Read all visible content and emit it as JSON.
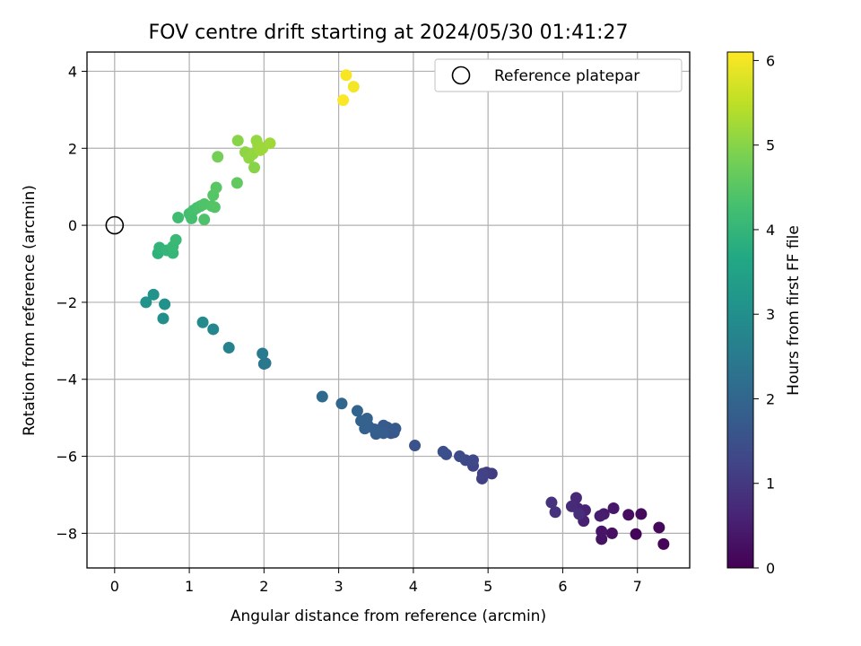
{
  "chart_data": {
    "type": "scatter",
    "title": "FOV centre drift starting at 2024/05/30 01:41:27",
    "xlabel": "Angular distance from reference (arcmin)",
    "ylabel": "Rotation from reference (arcmin)",
    "xlim": [
      -0.37,
      7.7
    ],
    "ylim": [
      -8.9,
      4.5
    ],
    "xticks": [
      0,
      1,
      2,
      3,
      4,
      5,
      6,
      7
    ],
    "yticks": [
      -8,
      -6,
      -4,
      -2,
      0,
      2,
      4
    ],
    "grid": true,
    "legend": {
      "position": "top-right",
      "entries": [
        "Reference platepar"
      ]
    },
    "reference_point": {
      "x": 0,
      "y": 0
    },
    "colorbar": {
      "label": "Hours from first FF file",
      "range": [
        0,
        6.1
      ],
      "ticks": [
        0,
        1,
        2,
        3,
        4,
        5,
        6
      ],
      "colormap": "viridis"
    },
    "points": [
      {
        "x": 6.98,
        "y": -8.02,
        "c": 0.05
      },
      {
        "x": 7.35,
        "y": -8.28,
        "c": 0.08
      },
      {
        "x": 7.29,
        "y": -7.85,
        "c": 0.12
      },
      {
        "x": 7.05,
        "y": -7.5,
        "c": 0.15
      },
      {
        "x": 6.88,
        "y": -7.52,
        "c": 0.2
      },
      {
        "x": 6.66,
        "y": -8.0,
        "c": 0.25
      },
      {
        "x": 6.52,
        "y": -8.15,
        "c": 0.3
      },
      {
        "x": 6.52,
        "y": -7.95,
        "c": 0.35
      },
      {
        "x": 6.68,
        "y": -7.35,
        "c": 0.4
      },
      {
        "x": 6.55,
        "y": -7.5,
        "c": 0.45
      },
      {
        "x": 6.5,
        "y": -7.55,
        "c": 0.5
      },
      {
        "x": 6.28,
        "y": -7.68,
        "c": 0.55
      },
      {
        "x": 6.3,
        "y": -7.4,
        "c": 0.6
      },
      {
        "x": 6.2,
        "y": -7.35,
        "c": 0.65
      },
      {
        "x": 6.18,
        "y": -7.08,
        "c": 0.7
      },
      {
        "x": 6.12,
        "y": -7.3,
        "c": 0.75
      },
      {
        "x": 6.22,
        "y": -7.5,
        "c": 0.8
      },
      {
        "x": 5.9,
        "y": -7.45,
        "c": 0.85
      },
      {
        "x": 5.85,
        "y": -7.2,
        "c": 0.9
      },
      {
        "x": 5.05,
        "y": -6.45,
        "c": 1.05
      },
      {
        "x": 4.98,
        "y": -6.42,
        "c": 1.1
      },
      {
        "x": 4.92,
        "y": -6.58,
        "c": 1.15
      },
      {
        "x": 4.93,
        "y": -6.45,
        "c": 1.2
      },
      {
        "x": 4.8,
        "y": -6.25,
        "c": 1.25
      },
      {
        "x": 4.8,
        "y": -6.1,
        "c": 1.3
      },
      {
        "x": 4.7,
        "y": -6.1,
        "c": 1.35
      },
      {
        "x": 4.62,
        "y": -6.0,
        "c": 1.4
      },
      {
        "x": 4.44,
        "y": -5.95,
        "c": 1.45
      },
      {
        "x": 4.4,
        "y": -5.88,
        "c": 1.5
      },
      {
        "x": 4.02,
        "y": -5.72,
        "c": 1.55
      },
      {
        "x": 3.74,
        "y": -5.38,
        "c": 1.6
      },
      {
        "x": 3.7,
        "y": -5.4,
        "c": 1.65
      },
      {
        "x": 3.76,
        "y": -5.28,
        "c": 1.7
      },
      {
        "x": 3.65,
        "y": -5.25,
        "c": 1.72
      },
      {
        "x": 3.6,
        "y": -5.2,
        "c": 1.75
      },
      {
        "x": 3.6,
        "y": -5.4,
        "c": 1.78
      },
      {
        "x": 3.5,
        "y": -5.42,
        "c": 1.8
      },
      {
        "x": 3.48,
        "y": -5.3,
        "c": 1.82
      },
      {
        "x": 3.4,
        "y": -5.22,
        "c": 1.85
      },
      {
        "x": 3.35,
        "y": -5.28,
        "c": 1.88
      },
      {
        "x": 3.38,
        "y": -5.02,
        "c": 1.9
      },
      {
        "x": 3.3,
        "y": -5.08,
        "c": 1.92
      },
      {
        "x": 3.25,
        "y": -4.82,
        "c": 1.95
      },
      {
        "x": 3.04,
        "y": -4.63,
        "c": 2.0
      },
      {
        "x": 2.78,
        "y": -4.45,
        "c": 2.1
      },
      {
        "x": 2.0,
        "y": -3.6,
        "c": 2.4
      },
      {
        "x": 2.02,
        "y": -3.58,
        "c": 2.42
      },
      {
        "x": 1.98,
        "y": -3.33,
        "c": 2.5
      },
      {
        "x": 1.53,
        "y": -3.18,
        "c": 2.7
      },
      {
        "x": 1.32,
        "y": -2.7,
        "c": 2.8
      },
      {
        "x": 1.18,
        "y": -2.52,
        "c": 2.9
      },
      {
        "x": 0.65,
        "y": -2.42,
        "c": 3.0
      },
      {
        "x": 0.67,
        "y": -2.05,
        "c": 3.05
      },
      {
        "x": 0.52,
        "y": -1.8,
        "c": 3.1
      },
      {
        "x": 0.42,
        "y": -2.0,
        "c": 3.15
      },
      {
        "x": 0.58,
        "y": -0.73,
        "c": 3.9
      },
      {
        "x": 0.6,
        "y": -0.58,
        "c": 3.95
      },
      {
        "x": 0.7,
        "y": -0.65,
        "c": 4.0
      },
      {
        "x": 0.78,
        "y": -0.72,
        "c": 4.02
      },
      {
        "x": 0.78,
        "y": -0.55,
        "c": 4.05
      },
      {
        "x": 0.82,
        "y": -0.38,
        "c": 4.08
      },
      {
        "x": 0.85,
        "y": 0.2,
        "c": 4.2
      },
      {
        "x": 1.0,
        "y": 0.3,
        "c": 4.25
      },
      {
        "x": 1.03,
        "y": 0.18,
        "c": 4.28
      },
      {
        "x": 1.05,
        "y": 0.38,
        "c": 4.3
      },
      {
        "x": 1.1,
        "y": 0.45,
        "c": 4.32
      },
      {
        "x": 1.15,
        "y": 0.5,
        "c": 4.35
      },
      {
        "x": 1.2,
        "y": 0.15,
        "c": 4.38
      },
      {
        "x": 1.2,
        "y": 0.55,
        "c": 4.4
      },
      {
        "x": 1.3,
        "y": 0.5,
        "c": 4.42
      },
      {
        "x": 1.34,
        "y": 0.47,
        "c": 4.45
      },
      {
        "x": 1.32,
        "y": 0.78,
        "c": 4.48
      },
      {
        "x": 1.36,
        "y": 0.98,
        "c": 4.5
      },
      {
        "x": 1.38,
        "y": 1.78,
        "c": 4.8
      },
      {
        "x": 1.64,
        "y": 1.1,
        "c": 4.6
      },
      {
        "x": 1.65,
        "y": 2.2,
        "c": 5.0
      },
      {
        "x": 1.75,
        "y": 1.9,
        "c": 5.05
      },
      {
        "x": 1.8,
        "y": 1.75,
        "c": 5.08
      },
      {
        "x": 1.85,
        "y": 1.85,
        "c": 5.1
      },
      {
        "x": 1.87,
        "y": 1.5,
        "c": 5.0
      },
      {
        "x": 1.9,
        "y": 2.2,
        "c": 5.12
      },
      {
        "x": 1.92,
        "y": 2.08,
        "c": 5.15
      },
      {
        "x": 1.95,
        "y": 1.95,
        "c": 5.18
      },
      {
        "x": 1.98,
        "y": 2.0,
        "c": 5.2
      },
      {
        "x": 2.08,
        "y": 2.13,
        "c": 5.22
      },
      {
        "x": 3.1,
        "y": 3.9,
        "c": 6.05
      },
      {
        "x": 3.2,
        "y": 3.6,
        "c": 6.0
      },
      {
        "x": 3.06,
        "y": 3.25,
        "c": 6.08
      }
    ]
  }
}
